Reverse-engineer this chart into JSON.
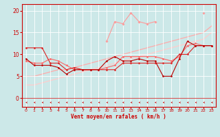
{
  "xlabel": "Vent moyen/en rafales ( km/h )",
  "background_color": "#cce8e8",
  "grid_color": "#ffffff",
  "x": [
    0,
    1,
    2,
    3,
    4,
    5,
    6,
    7,
    8,
    9,
    10,
    11,
    12,
    13,
    14,
    15,
    16,
    17,
    18,
    19,
    20,
    21,
    22,
    23
  ],
  "lines": [
    {
      "y": [
        9.0,
        7.5,
        7.5,
        7.5,
        7.0,
        5.5,
        6.5,
        6.5,
        6.5,
        6.5,
        8.5,
        9.5,
        8.5,
        8.5,
        9.0,
        8.5,
        8.5,
        5.0,
        5.0,
        9.0,
        13.0,
        12.0,
        12.0,
        12.0
      ],
      "color": "#bb0000",
      "lw": 0.8,
      "marker": "D",
      "ms": 1.5,
      "zorder": 5
    },
    {
      "y": [
        11.5,
        11.5,
        11.5,
        8.0,
        8.0,
        6.5,
        7.0,
        6.5,
        6.5,
        6.5,
        6.5,
        6.5,
        8.0,
        8.0,
        8.0,
        8.0,
        8.0,
        8.0,
        8.0,
        10.0,
        10.0,
        12.0,
        12.0,
        12.0
      ],
      "color": "#dd2222",
      "lw": 0.8,
      "marker": "D",
      "ms": 1.5,
      "zorder": 4
    },
    {
      "y": [
        8.5,
        8.0,
        8.0,
        9.0,
        8.5,
        7.5,
        6.5,
        6.5,
        6.5,
        6.5,
        7.0,
        7.5,
        9.5,
        9.5,
        9.5,
        9.5,
        9.5,
        9.0,
        8.5,
        9.5,
        12.0,
        12.5,
        12.0,
        12.0
      ],
      "color": "#ff6666",
      "lw": 0.8,
      "marker": "D",
      "ms": 1.5,
      "zorder": 3
    },
    {
      "y": [
        null,
        null,
        null,
        null,
        null,
        null,
        null,
        null,
        null,
        null,
        13.0,
        17.5,
        17.0,
        19.5,
        17.5,
        17.0,
        17.5,
        null,
        null,
        null,
        null,
        null,
        19.5,
        null
      ],
      "color": "#ff9999",
      "lw": 0.8,
      "marker": "D",
      "ms": 1.8,
      "zorder": 2
    },
    {
      "y": [
        5.0,
        5.0,
        5.5,
        6.0,
        6.5,
        6.5,
        7.0,
        7.5,
        8.0,
        8.5,
        9.0,
        9.5,
        10.0,
        10.5,
        11.0,
        11.5,
        12.0,
        12.5,
        13.0,
        13.5,
        14.0,
        14.5,
        15.0,
        16.5
      ],
      "color": "#ffaaaa",
      "lw": 0.9,
      "marker": null,
      "ms": 0,
      "zorder": 1
    },
    {
      "y": [
        3.0,
        3.0,
        3.5,
        4.0,
        4.5,
        5.0,
        5.5,
        6.0,
        6.5,
        7.0,
        7.5,
        8.0,
        8.5,
        9.0,
        9.5,
        10.0,
        10.5,
        11.0,
        11.5,
        12.0,
        12.5,
        13.0,
        13.5,
        15.0
      ],
      "color": "#ffcccc",
      "lw": 0.9,
      "marker": null,
      "ms": 0,
      "zorder": 1
    }
  ],
  "yticks": [
    0,
    5,
    10,
    15,
    20
  ],
  "ylim": [
    -2.0,
    21.5
  ],
  "xlim": [
    -0.5,
    23.5
  ],
  "arrow_color": "#cc0000",
  "spine_color": "#cc0000"
}
